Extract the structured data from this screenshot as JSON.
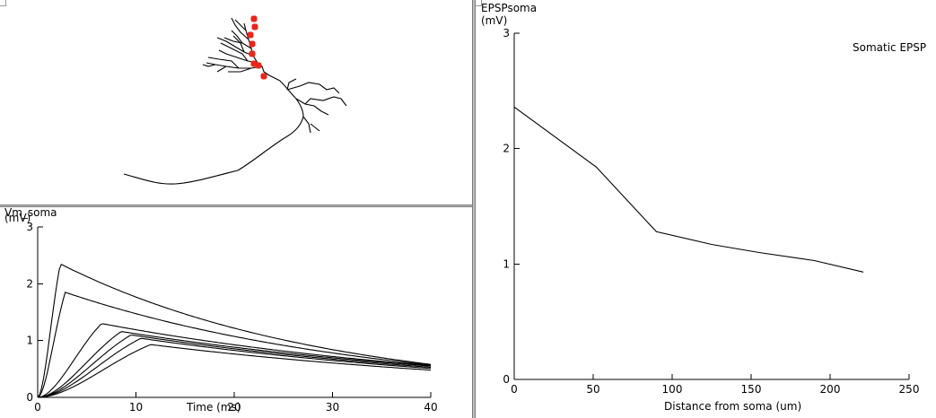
{
  "morphology": {
    "marker_color": "#e8261c",
    "marker_count": 8
  },
  "vm_plot": {
    "ylabel_line1": "Vm_soma",
    "ylabel_line2": "(mV)",
    "xlabel": "Time (ms)",
    "x_ticks": [
      "0",
      "10",
      "20",
      "30",
      "40"
    ],
    "y_ticks": [
      "0",
      "1",
      "2",
      "3"
    ]
  },
  "epsp_plot": {
    "ylabel_line1": "EPSPsoma",
    "ylabel_line2": "(mV)",
    "xlabel": "Distance from soma (um)",
    "legend": "Somatic EPSP",
    "x_ticks": [
      "0",
      "50",
      "100",
      "150",
      "200",
      "250"
    ],
    "y_ticks": [
      "0",
      "1",
      "2",
      "3"
    ]
  },
  "chart_data": [
    {
      "type": "line",
      "title": "",
      "xlabel": "Time (ms)",
      "ylabel": "Vm_soma (mV)",
      "xlim": [
        0,
        40
      ],
      "ylim": [
        0,
        3
      ],
      "series": [
        {
          "peak_time": 2.3,
          "peak": 2.35,
          "end_value": 0.58
        },
        {
          "peak_time": 2.8,
          "peak": 1.85,
          "end_value": 0.57
        },
        {
          "peak_time": 6.5,
          "peak": 1.3,
          "end_value": 0.56
        },
        {
          "peak_time": 8.5,
          "peak": 1.16,
          "end_value": 0.55
        },
        {
          "peak_time": 9.5,
          "peak": 1.1,
          "end_value": 0.53
        },
        {
          "peak_time": 10.5,
          "peak": 1.04,
          "end_value": 0.51
        },
        {
          "peak_time": 11.5,
          "peak": 0.93,
          "end_value": 0.48
        }
      ]
    },
    {
      "type": "line",
      "title": "",
      "xlabel": "Distance from soma (um)",
      "ylabel": "EPSPsoma (mV)",
      "xlim": [
        0,
        250
      ],
      "ylim": [
        0,
        3
      ],
      "series": [
        {
          "name": "Somatic EPSP",
          "x": [
            0,
            52,
            90,
            125,
            155,
            190,
            221
          ],
          "y": [
            2.36,
            1.84,
            1.28,
            1.17,
            1.1,
            1.03,
            0.93
          ]
        }
      ]
    }
  ]
}
